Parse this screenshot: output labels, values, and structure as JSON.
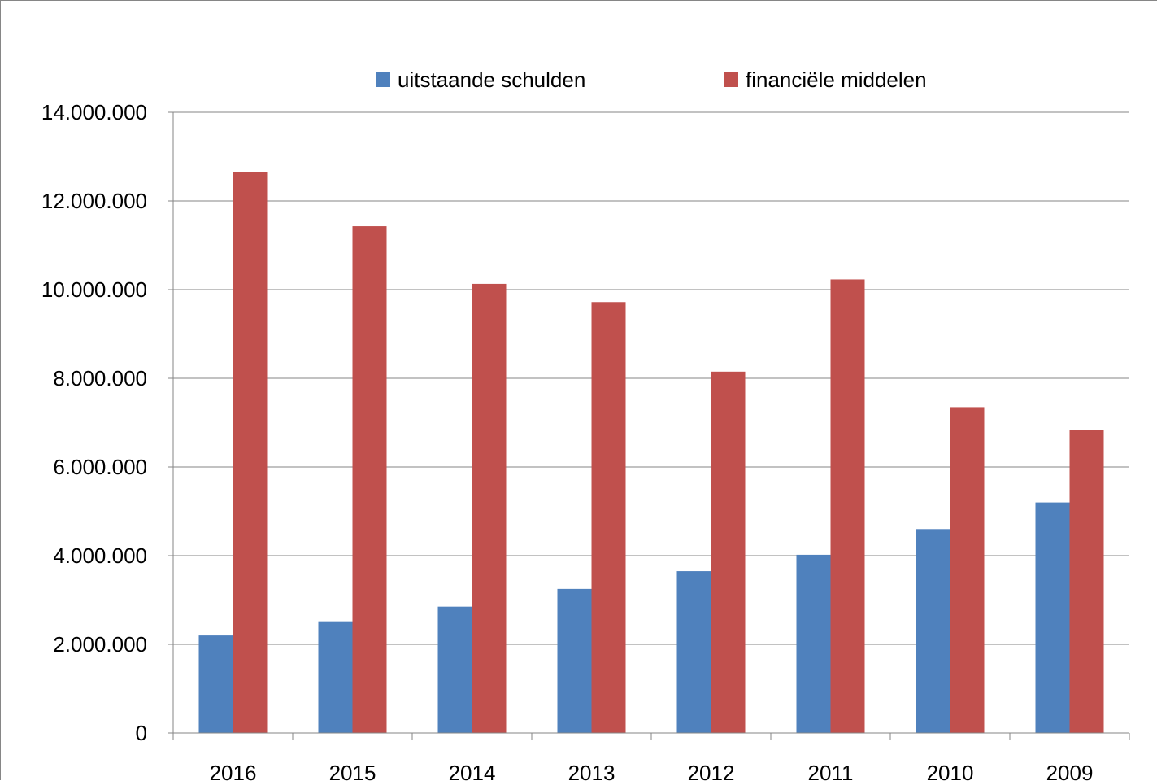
{
  "chart_data": {
    "type": "bar",
    "categories": [
      "2016",
      "2015",
      "2014",
      "2013",
      "2012",
      "2011",
      "2010",
      "2009"
    ],
    "series": [
      {
        "name": "uitstaande schulden",
        "color": "#4F81BD",
        "values": [
          2200000,
          2520000,
          2850000,
          3250000,
          3650000,
          4020000,
          4600000,
          5200000
        ]
      },
      {
        "name": "financiële middelen",
        "color": "#C0504D",
        "values": [
          12650000,
          11430000,
          10130000,
          9720000,
          8150000,
          10230000,
          7350000,
          6830000
        ]
      }
    ],
    "ylim": [
      0,
      14000000
    ],
    "yticks": [
      {
        "value": 0,
        "label": "0"
      },
      {
        "value": 2000000,
        "label": "2.000.000"
      },
      {
        "value": 4000000,
        "label": "4.000.000"
      },
      {
        "value": 6000000,
        "label": "6.000.000"
      },
      {
        "value": 8000000,
        "label": "8.000.000"
      },
      {
        "value": 10000000,
        "label": "10.000.000"
      },
      {
        "value": 12000000,
        "label": "12.000.000"
      },
      {
        "value": 14000000,
        "label": "14.000.000"
      }
    ],
    "grid": true,
    "legend_position": "top"
  }
}
